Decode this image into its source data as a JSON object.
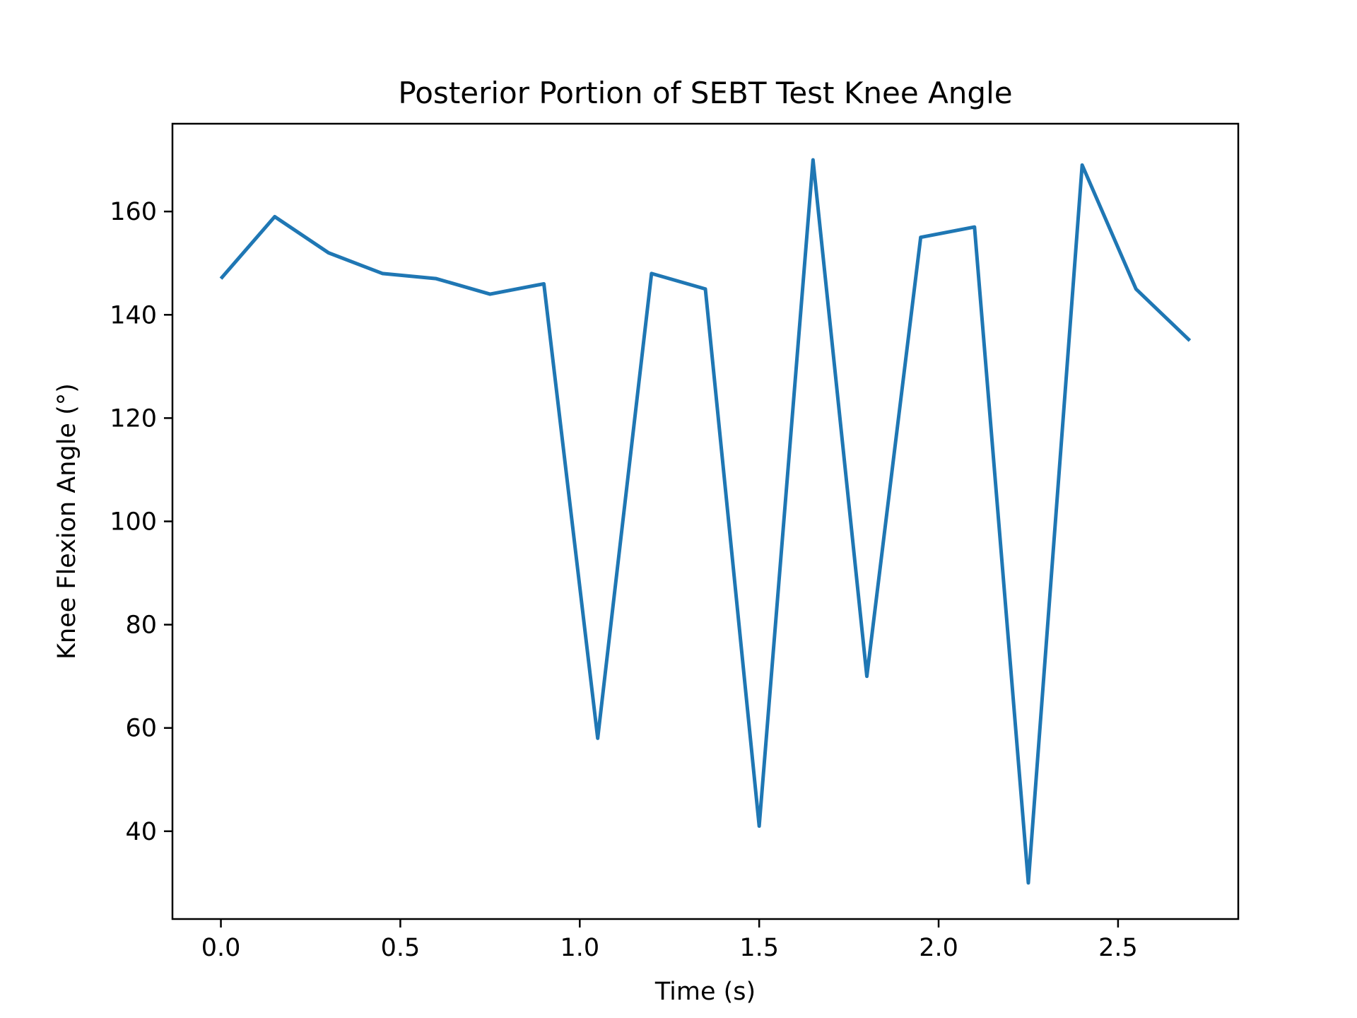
{
  "chart_data": {
    "type": "line",
    "title": "Posterior Portion of SEBT Test Knee Angle",
    "xlabel": "Time (s)",
    "ylabel": "Knee Flexion Angle (°)",
    "xlim": [
      -0.135,
      2.835
    ],
    "ylim": [
      23,
      177
    ],
    "xticks": [
      {
        "value": 0.0,
        "label": "0.0"
      },
      {
        "value": 0.5,
        "label": "0.5"
      },
      {
        "value": 1.0,
        "label": "1.0"
      },
      {
        "value": 1.5,
        "label": "1.5"
      },
      {
        "value": 2.0,
        "label": "2.0"
      },
      {
        "value": 2.5,
        "label": "2.5"
      }
    ],
    "yticks": [
      {
        "value": 40,
        "label": "40"
      },
      {
        "value": 60,
        "label": "60"
      },
      {
        "value": 80,
        "label": "80"
      },
      {
        "value": 100,
        "label": "100"
      },
      {
        "value": 120,
        "label": "120"
      },
      {
        "value": 140,
        "label": "140"
      },
      {
        "value": 160,
        "label": "160"
      }
    ],
    "grid": false,
    "series": [
      {
        "color": "#1f77b4",
        "x": [
          0.0,
          0.15,
          0.3,
          0.45,
          0.6,
          0.75,
          0.9,
          1.05,
          1.2,
          1.35,
          1.5,
          1.65,
          1.8,
          1.95,
          2.1,
          2.25,
          2.4,
          2.55,
          2.7
        ],
        "y": [
          147,
          159,
          152,
          148,
          147,
          144,
          146,
          58,
          148,
          145,
          41,
          170,
          70,
          155,
          157,
          30,
          169,
          145,
          135
        ]
      }
    ]
  }
}
